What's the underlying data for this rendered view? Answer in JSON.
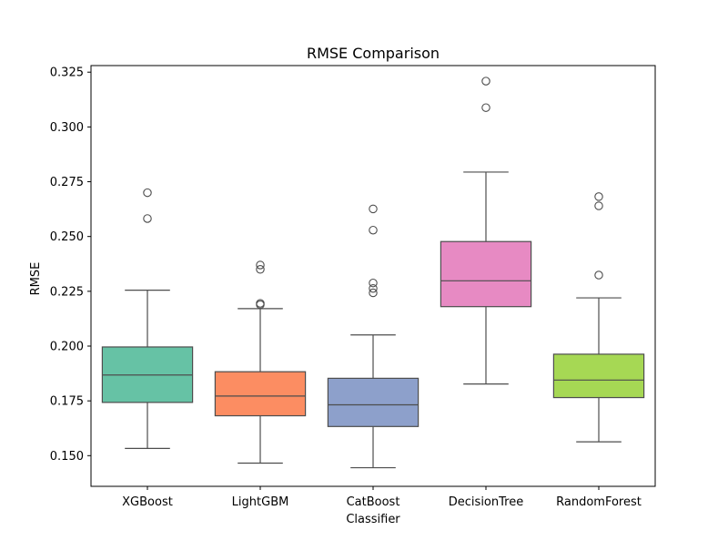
{
  "chart_data": {
    "type": "box",
    "title": "RMSE Comparison",
    "xlabel": "Classifier",
    "ylabel": "RMSE",
    "ylim": [
      0.136,
      0.328
    ],
    "yticks": [
      0.15,
      0.175,
      0.2,
      0.225,
      0.25,
      0.275,
      0.3,
      0.325
    ],
    "ytick_labels": [
      "0.150",
      "0.175",
      "0.200",
      "0.225",
      "0.250",
      "0.275",
      "0.300",
      "0.325"
    ],
    "grid": false,
    "categories": [
      "XGBoost",
      "LightGBM",
      "CatBoost",
      "DecisionTree",
      "RandomForest"
    ],
    "boxes": [
      {
        "name": "XGBoost",
        "whisker_low": 0.1533,
        "q1": 0.1743,
        "median": 0.1868,
        "q3": 0.1996,
        "whisker_high": 0.2255,
        "outliers": [
          0.2582,
          0.27
        ],
        "color": "#66c2a5"
      },
      {
        "name": "LightGBM",
        "whisker_low": 0.1466,
        "q1": 0.1682,
        "median": 0.1772,
        "q3": 0.1883,
        "whisker_high": 0.2171,
        "outliers": [
          0.2189,
          0.2195,
          0.235,
          0.237
        ],
        "color": "#fc8d62"
      },
      {
        "name": "CatBoost",
        "whisker_low": 0.1445,
        "q1": 0.1633,
        "median": 0.1732,
        "q3": 0.1853,
        "whisker_high": 0.2051,
        "outliers": [
          0.2243,
          0.2263,
          0.2288,
          0.2529,
          0.2626
        ],
        "color": "#8da0cb"
      },
      {
        "name": "DecisionTree",
        "whisker_low": 0.1827,
        "q1": 0.218,
        "median": 0.2298,
        "q3": 0.2477,
        "whisker_high": 0.2794,
        "outliers": [
          0.3088,
          0.3209
        ],
        "color": "#e78ac3"
      },
      {
        "name": "RandomForest",
        "whisker_low": 0.1563,
        "q1": 0.1765,
        "median": 0.1845,
        "q3": 0.1963,
        "whisker_high": 0.222,
        "outliers": [
          0.2324,
          0.264,
          0.2682
        ],
        "color": "#a6d854"
      }
    ]
  }
}
